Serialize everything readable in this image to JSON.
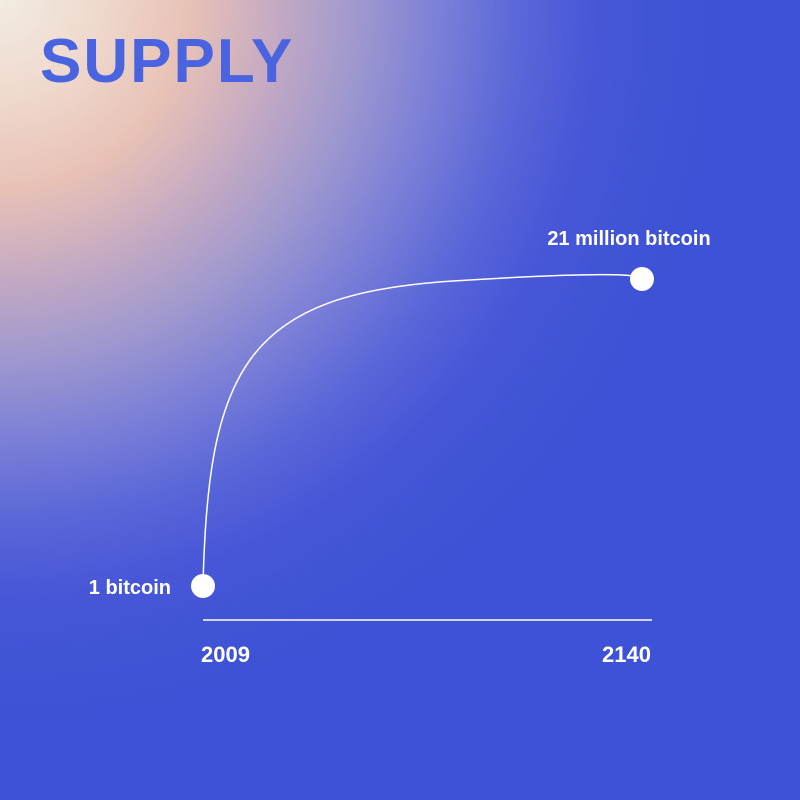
{
  "title": "SUPPLY",
  "colors": {
    "accent": "#4a64e0",
    "background": "#3d52d6",
    "line": "#ffffff"
  },
  "chart_data": {
    "type": "line",
    "title": "",
    "xlabel": "",
    "ylabel": "",
    "x_tick_labels": [
      "2009",
      "2140"
    ],
    "points": [
      {
        "x": 2009,
        "label": "1 bitcoin"
      },
      {
        "x": 2140,
        "label": "21 million bitcoin"
      }
    ],
    "curve": "concave-saturating",
    "grid": false,
    "legend": "none"
  }
}
